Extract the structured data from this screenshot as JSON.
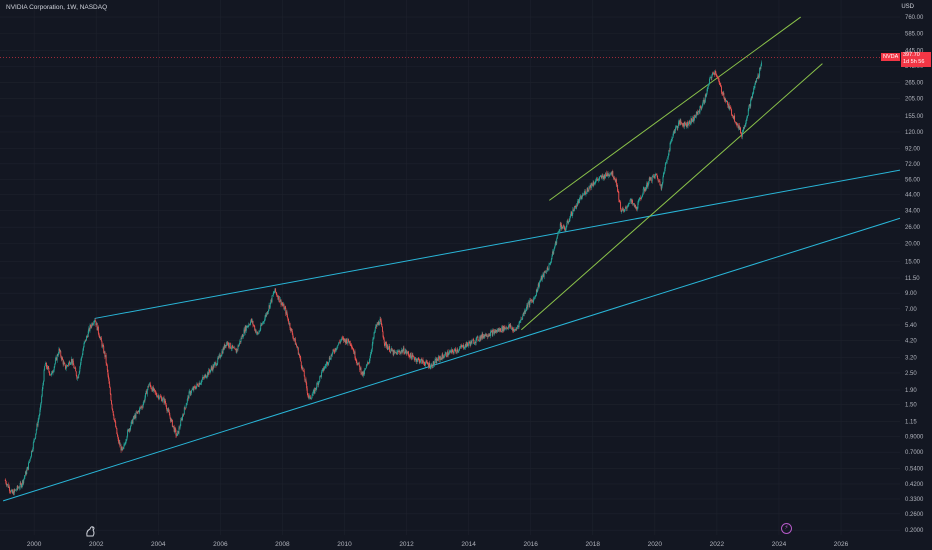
{
  "header": {
    "title": "NVIDIA Corporation, 1W, NASDAQ"
  },
  "currency_label": "USD",
  "price_tag": {
    "symbol": "NVDA",
    "price": "397.70",
    "countdown": "1d 5h 56"
  },
  "event_icon_glyph": "⚡",
  "colors": {
    "background": "#131722",
    "up": "#26a69a",
    "down": "#ef5350",
    "trend_cyan": "#29b6d8",
    "channel_green": "#8bc34a",
    "price_line": "#f23645"
  },
  "chart_data": {
    "type": "candlestick",
    "title": "NVIDIA Corporation, 1W, NASDAQ",
    "y_scale": "log",
    "ylim": [
      0.185,
      1000
    ],
    "xlim": [
      1998.9,
      2027.9
    ],
    "y_ticks": [
      "760.00",
      "585.00",
      "445.00",
      "345.00",
      "265.00",
      "205.00",
      "155.00",
      "120.00",
      "92.00",
      "72.00",
      "56.00",
      "44.00",
      "34.00",
      "26.00",
      "20.00",
      "15.00",
      "11.50",
      "9.00",
      "7.00",
      "5.40",
      "4.20",
      "3.20",
      "2.50",
      "1.90",
      "1.50",
      "1.15",
      "0.9000",
      "0.7000",
      "0.5400",
      "0.4200",
      "0.3300",
      "0.2600",
      "0.2000"
    ],
    "x_ticks": [
      "2000",
      "2002",
      "2004",
      "2006",
      "2008",
      "2010",
      "2012",
      "2014",
      "2016",
      "2018",
      "2020",
      "2022",
      "2024",
      "2026"
    ],
    "last_price": 397.7,
    "price_path": [
      [
        1999.05,
        0.45
      ],
      [
        1999.3,
        0.36
      ],
      [
        1999.6,
        0.42
      ],
      [
        1999.8,
        0.55
      ],
      [
        2000.0,
        0.85
      ],
      [
        2000.2,
        1.4
      ],
      [
        2000.35,
        2.9
      ],
      [
        2000.55,
        2.4
      ],
      [
        2000.8,
        3.6
      ],
      [
        2001.0,
        2.7
      ],
      [
        2001.2,
        3.1
      ],
      [
        2001.4,
        2.3
      ],
      [
        2001.6,
        3.9
      ],
      [
        2001.8,
        5.2
      ],
      [
        2001.95,
        6.0
      ],
      [
        2002.1,
        4.6
      ],
      [
        2002.3,
        3.2
      ],
      [
        2002.5,
        1.5
      ],
      [
        2002.7,
        0.85
      ],
      [
        2002.85,
        0.7
      ],
      [
        2003.0,
        0.95
      ],
      [
        2003.2,
        1.2
      ],
      [
        2003.5,
        1.5
      ],
      [
        2003.7,
        2.1
      ],
      [
        2003.9,
        1.8
      ],
      [
        2004.2,
        1.6
      ],
      [
        2004.45,
        1.1
      ],
      [
        2004.6,
        0.9
      ],
      [
        2004.8,
        1.3
      ],
      [
        2005.0,
        1.8
      ],
      [
        2005.3,
        2.1
      ],
      [
        2005.6,
        2.5
      ],
      [
        2005.9,
        3.0
      ],
      [
        2006.2,
        4.1
      ],
      [
        2006.5,
        3.5
      ],
      [
        2006.8,
        5.1
      ],
      [
        2007.0,
        5.8
      ],
      [
        2007.2,
        4.6
      ],
      [
        2007.5,
        6.6
      ],
      [
        2007.75,
        9.4
      ],
      [
        2007.9,
        8.2
      ],
      [
        2008.1,
        6.8
      ],
      [
        2008.3,
        4.8
      ],
      [
        2008.5,
        3.6
      ],
      [
        2008.7,
        2.4
      ],
      [
        2008.85,
        1.65
      ],
      [
        2009.0,
        1.8
      ],
      [
        2009.3,
        2.6
      ],
      [
        2009.6,
        3.4
      ],
      [
        2009.9,
        4.3
      ],
      [
        2010.2,
        4.1
      ],
      [
        2010.4,
        3.0
      ],
      [
        2010.6,
        2.4
      ],
      [
        2010.8,
        3.1
      ],
      [
        2011.0,
        5.2
      ],
      [
        2011.15,
        5.8
      ],
      [
        2011.3,
        4.0
      ],
      [
        2011.6,
        3.4
      ],
      [
        2011.9,
        3.6
      ],
      [
        2012.2,
        3.2
      ],
      [
        2012.5,
        3.0
      ],
      [
        2012.8,
        2.8
      ],
      [
        2013.0,
        3.1
      ],
      [
        2013.3,
        3.4
      ],
      [
        2013.6,
        3.6
      ],
      [
        2013.9,
        3.9
      ],
      [
        2014.2,
        4.2
      ],
      [
        2014.5,
        4.6
      ],
      [
        2014.8,
        4.8
      ],
      [
        2015.0,
        5.0
      ],
      [
        2015.3,
        5.3
      ],
      [
        2015.5,
        4.9
      ],
      [
        2015.7,
        6.0
      ],
      [
        2015.9,
        7.5
      ],
      [
        2016.1,
        8.2
      ],
      [
        2016.3,
        11.0
      ],
      [
        2016.6,
        14.0
      ],
      [
        2016.8,
        20.0
      ],
      [
        2016.95,
        27.0
      ],
      [
        2017.1,
        25.0
      ],
      [
        2017.3,
        32.0
      ],
      [
        2017.5,
        38.0
      ],
      [
        2017.7,
        44.0
      ],
      [
        2017.9,
        50.0
      ],
      [
        2018.1,
        55.0
      ],
      [
        2018.3,
        58.0
      ],
      [
        2018.6,
        63.0
      ],
      [
        2018.75,
        55.0
      ],
      [
        2018.9,
        35.0
      ],
      [
        2019.0,
        33.0
      ],
      [
        2019.2,
        40.0
      ],
      [
        2019.4,
        35.0
      ],
      [
        2019.6,
        45.0
      ],
      [
        2019.85,
        56.0
      ],
      [
        2020.05,
        60.0
      ],
      [
        2020.2,
        50.0
      ],
      [
        2020.4,
        80.0
      ],
      [
        2020.6,
        120.0
      ],
      [
        2020.8,
        140.0
      ],
      [
        2021.0,
        135.0
      ],
      [
        2021.2,
        145.0
      ],
      [
        2021.4,
        165.0
      ],
      [
        2021.6,
        200.0
      ],
      [
        2021.8,
        290.0
      ],
      [
        2021.95,
        320.0
      ],
      [
        2022.1,
        250.0
      ],
      [
        2022.3,
        195.0
      ],
      [
        2022.5,
        160.0
      ],
      [
        2022.7,
        130.0
      ],
      [
        2022.8,
        115.0
      ],
      [
        2022.95,
        150.0
      ],
      [
        2023.1,
        200.0
      ],
      [
        2023.25,
        270.0
      ],
      [
        2023.35,
        300.0
      ],
      [
        2023.45,
        397.7
      ]
    ],
    "trendlines": [
      {
        "kind": "cyan-upper",
        "points": [
          [
            2001.95,
            6.0
          ],
          [
            2027.9,
            65.0
          ]
        ]
      },
      {
        "kind": "cyan-lower",
        "points": [
          [
            1999.0,
            0.32
          ],
          [
            2027.9,
            30.0
          ]
        ]
      },
      {
        "kind": "green-channel-upper",
        "points": [
          [
            2016.6,
            40.0
          ],
          [
            2024.7,
            760.0
          ]
        ]
      },
      {
        "kind": "green-channel-lower",
        "points": [
          [
            2015.7,
            5.0
          ],
          [
            2025.4,
            360.0
          ]
        ]
      }
    ]
  }
}
